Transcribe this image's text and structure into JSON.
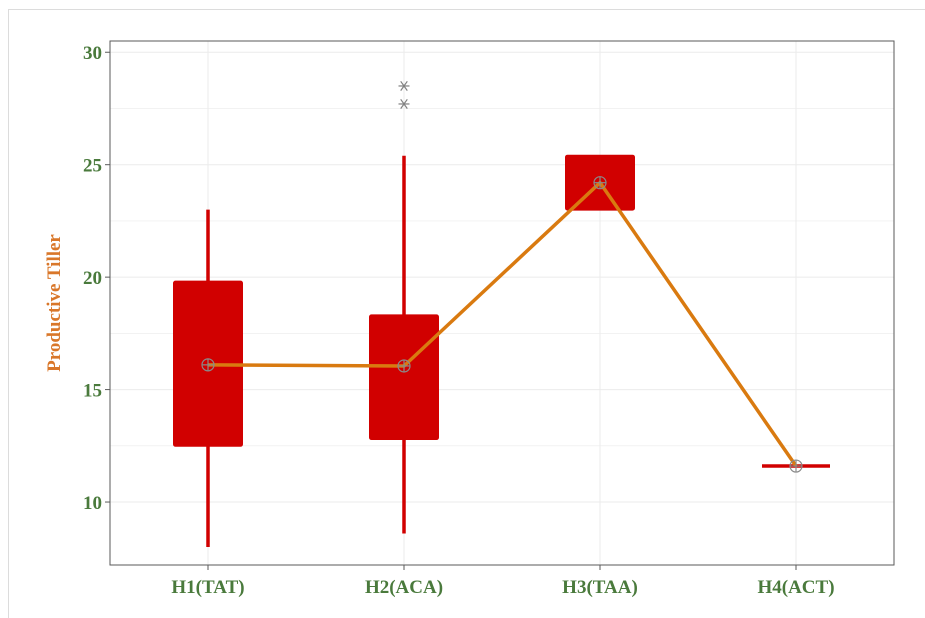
{
  "chart_data": {
    "type": "boxplot",
    "title": "",
    "xlabel": "",
    "ylabel": "Productive Tiller",
    "ylim": [
      7.2,
      30.5
    ],
    "y_ticks": [
      10,
      15,
      20,
      25,
      30
    ],
    "y_tick_labels": [
      "10",
      "15",
      "20",
      "25",
      "30"
    ],
    "categories": [
      "H1(TAT)",
      "H2(ACA)",
      "H3(TAA)",
      "H4(ACT)"
    ],
    "grid": true,
    "legend": "none",
    "boxes": [
      {
        "category": "H1(TAT)",
        "whisker_low": 8.0,
        "q1": 12.5,
        "median": 16.1,
        "q3": 19.8,
        "whisker_high": 23.0,
        "outliers": []
      },
      {
        "category": "H2(ACA)",
        "whisker_low": 8.6,
        "q1": 12.8,
        "median": 16.1,
        "q3": 18.3,
        "whisker_high": 25.4,
        "outliers": [
          27.7,
          28.5
        ]
      },
      {
        "category": "H3(TAA)",
        "whisker_low": 23.0,
        "q1": 23.0,
        "median": 24.2,
        "q3": 25.4,
        "whisker_high": 25.4,
        "outliers": []
      },
      {
        "category": "H4(ACT)",
        "whisker_low": 11.6,
        "q1": 11.6,
        "median": 11.6,
        "q3": 11.6,
        "whisker_high": 11.6,
        "outliers": []
      }
    ],
    "mean_line": {
      "values": [
        16.1,
        16.05,
        24.2,
        11.6
      ]
    },
    "colors": {
      "box_fill": "#d10000",
      "whisker": "#d10000",
      "mean_line": "#d97a10",
      "mean_marker": "#8a8a8a",
      "outlier": "#808080",
      "tick_label": "#4a7a3c",
      "ylabel": "#d9772a",
      "axis_frame": "#5a5a5a",
      "grid": "#ebebeb"
    }
  }
}
